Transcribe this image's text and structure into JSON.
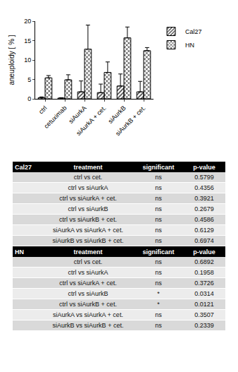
{
  "chart_data": {
    "type": "bar",
    "categories": [
      "ctrl",
      "cetuximab",
      "siAurkA",
      "siAurkA + cet.",
      "siAurkB",
      "siAurkB + cet."
    ],
    "y_label": "aneuploidy [ % ]",
    "series": [
      {
        "name": "Cal27",
        "color": "#9a9a9a",
        "marker": "hatched",
        "values": [
          0.3,
          0.2,
          1.8,
          1.6,
          3.3,
          1.8
        ],
        "errors": [
          0.2,
          0.1,
          2.8,
          2.2,
          3.1,
          2.7
        ]
      },
      {
        "name": "HN",
        "color": "#ffffff",
        "marker": "checkered",
        "values": [
          5.4,
          4.9,
          12.8,
          6.8,
          15.7,
          12.4
        ],
        "errors": [
          0.6,
          1.3,
          6.2,
          2.7,
          2.8,
          0.8
        ]
      }
    ],
    "ylim": [
      0,
      20
    ],
    "yticks": [
      0,
      5,
      10,
      15,
      20
    ],
    "grid": false,
    "legend": "top right"
  },
  "tables": [
    {
      "header": [
        "Cal27",
        "treatment",
        "significant",
        "p-value"
      ],
      "rows": [
        [
          "ctrl vs cet.",
          "ns",
          "0.5799"
        ],
        [
          "ctrl vs siAurkA",
          "ns",
          "0.4356"
        ],
        [
          "ctrl vs siAurkA  + cet.",
          "ns",
          "0.3921"
        ],
        [
          "ctrl vs siAurkB",
          "ns",
          "0.2679"
        ],
        [
          "ctrl vs siAurkB + cet.",
          "ns",
          "0.4586"
        ],
        [
          "siAurkA  vs siAurkA + cet.",
          "ns",
          "0.6129"
        ],
        [
          "siAurkB vs siAurkB + cet.",
          "ns",
          "0.6974"
        ]
      ]
    },
    {
      "header": [
        "HN",
        "treatment",
        "significant",
        "p-value"
      ],
      "rows": [
        [
          "ctrl vs cet.",
          "ns",
          "0.6892"
        ],
        [
          "ctrl vs siAurkA",
          "ns",
          "0.1958"
        ],
        [
          "ctrl vs siAurkA  + cet.",
          "ns",
          "0.3726"
        ],
        [
          "ctrl vs siAurkB",
          "*",
          "0.0314"
        ],
        [
          "ctrl vs siAurkB + cet.",
          "*",
          "0.0121"
        ],
        [
          "siAurkA  vs siAurkA + cet.",
          "ns",
          "0.3507"
        ],
        [
          "siAurkB vs siAurkB + cet.",
          "ns",
          "0.2339"
        ]
      ]
    }
  ]
}
